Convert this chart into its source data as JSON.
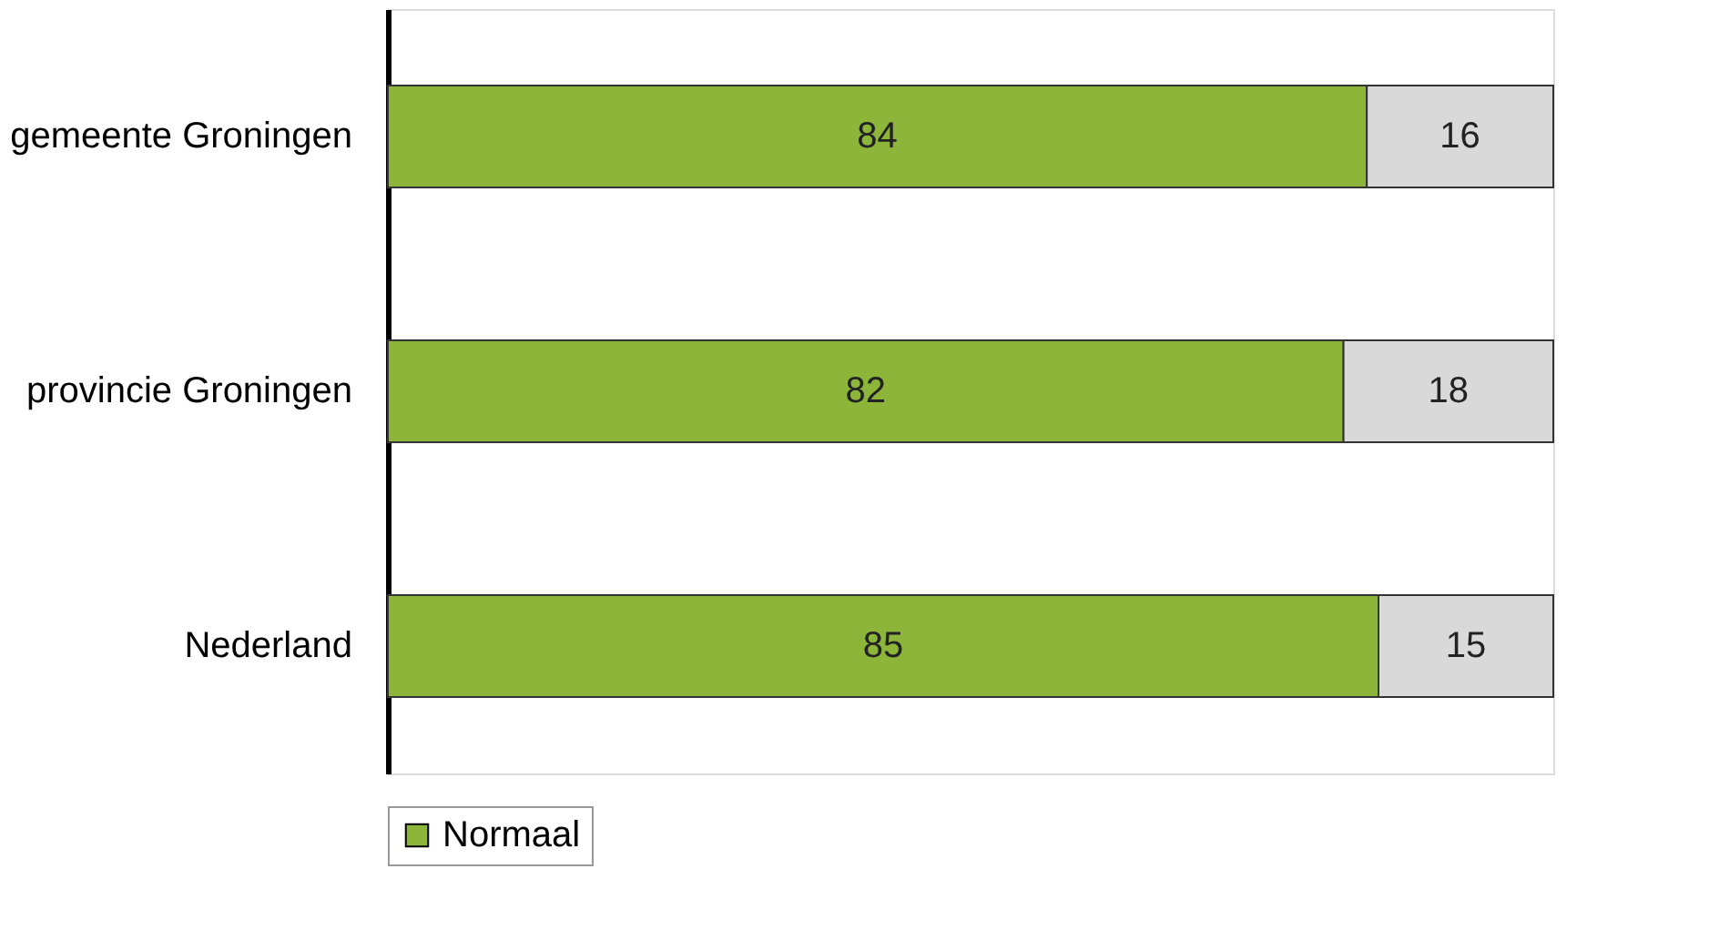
{
  "chart_data": {
    "type": "bar",
    "orientation": "horizontal",
    "stacked": true,
    "categories": [
      "gemeente Groningen",
      "provincie Groningen",
      "Nederland"
    ],
    "series": [
      {
        "name": "Normaal",
        "color": "#8db53a",
        "values": [
          84,
          82,
          85
        ]
      },
      {
        "color": "#d9d9d9",
        "values": [
          16,
          18,
          15
        ]
      }
    ],
    "xlim": [
      0,
      100
    ],
    "data_labels": true,
    "legend": "bottom",
    "grid": false,
    "tick_labels": "y"
  }
}
